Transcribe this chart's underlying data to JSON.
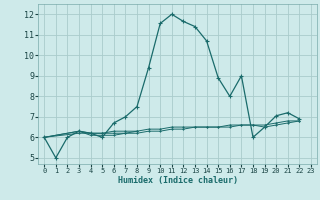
{
  "xlabel": "Humidex (Indice chaleur)",
  "background_color": "#ceeaea",
  "grid_color": "#aacccc",
  "line_color": "#1a6b6b",
  "xlim": [
    -0.5,
    23.5
  ],
  "ylim": [
    4.7,
    12.5
  ],
  "xticks": [
    0,
    1,
    2,
    3,
    4,
    5,
    6,
    7,
    8,
    9,
    10,
    11,
    12,
    13,
    14,
    15,
    16,
    17,
    18,
    19,
    20,
    21,
    22,
    23
  ],
  "yticks": [
    5,
    6,
    7,
    8,
    9,
    10,
    11,
    12
  ],
  "series": [
    {
      "x": [
        0,
        1,
        2,
        3,
        4,
        5,
        6,
        7,
        8,
        9,
        10,
        11,
        12,
        13,
        14,
        15,
        16,
        17,
        18,
        19,
        20,
        21,
        22
      ],
      "y": [
        6.0,
        5.0,
        6.0,
        6.3,
        6.2,
        6.0,
        6.7,
        7.0,
        7.5,
        9.4,
        11.55,
        12.0,
        11.65,
        11.4,
        10.7,
        8.9,
        8.0,
        9.0,
        6.0,
        6.5,
        7.05,
        7.2,
        6.9
      ]
    },
    {
      "x": [
        0,
        3,
        4,
        5,
        6,
        7,
        8
      ],
      "y": [
        6.0,
        6.3,
        6.1,
        6.1,
        6.1,
        6.2,
        6.3
      ]
    },
    {
      "x": [
        0,
        3,
        4,
        5,
        6,
        7,
        8,
        9,
        10,
        11,
        12,
        13,
        14,
        15,
        16,
        17,
        18,
        19,
        20,
        21,
        22
      ],
      "y": [
        6.0,
        6.3,
        6.2,
        6.2,
        6.2,
        6.2,
        6.2,
        6.3,
        6.3,
        6.4,
        6.4,
        6.5,
        6.5,
        6.5,
        6.5,
        6.6,
        6.6,
        6.5,
        6.6,
        6.7,
        6.8
      ]
    },
    {
      "x": [
        0,
        3,
        4,
        5,
        6,
        7,
        8,
        9,
        10,
        11,
        12,
        13,
        14,
        15,
        16,
        17,
        18,
        19,
        20,
        21,
        22
      ],
      "y": [
        6.0,
        6.2,
        6.2,
        6.2,
        6.3,
        6.3,
        6.3,
        6.4,
        6.4,
        6.5,
        6.5,
        6.5,
        6.5,
        6.5,
        6.6,
        6.6,
        6.6,
        6.6,
        6.7,
        6.8,
        6.8
      ]
    }
  ]
}
